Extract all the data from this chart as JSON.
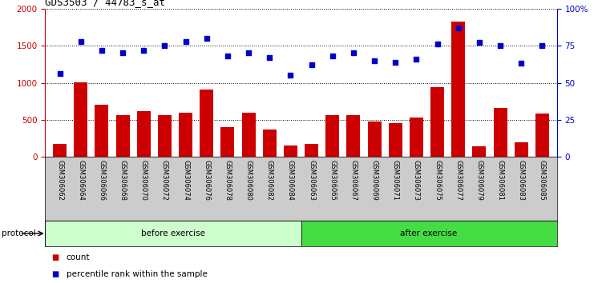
{
  "title": "GDS3503 / 44783_s_at",
  "categories": [
    "GSM306062",
    "GSM306064",
    "GSM306066",
    "GSM306068",
    "GSM306070",
    "GSM306072",
    "GSM306074",
    "GSM306076",
    "GSM306078",
    "GSM306080",
    "GSM306082",
    "GSM306084",
    "GSM306063",
    "GSM306065",
    "GSM306067",
    "GSM306069",
    "GSM306071",
    "GSM306073",
    "GSM306075",
    "GSM306077",
    "GSM306079",
    "GSM306081",
    "GSM306083",
    "GSM306085"
  ],
  "counts": [
    175,
    1010,
    700,
    565,
    620,
    560,
    600,
    910,
    400,
    600,
    370,
    155,
    175,
    570,
    565,
    480,
    455,
    530,
    940,
    1820,
    145,
    660,
    195,
    590
  ],
  "percentiles_pct": [
    56,
    78,
    72,
    70,
    72,
    75,
    78,
    80,
    68,
    70,
    67,
    55,
    62,
    68,
    70,
    65,
    64,
    66,
    76,
    87,
    77,
    75,
    63,
    75
  ],
  "bar_color": "#cc0000",
  "dot_color": "#0000cc",
  "before_count": 12,
  "after_count": 12,
  "before_label": "before exercise",
  "after_label": "after exercise",
  "protocol_label": "protocol",
  "legend_count": "count",
  "legend_percentile": "percentile rank within the sample",
  "ylim_left": [
    0,
    2000
  ],
  "ylim_right": [
    0,
    100
  ],
  "yticks_left": [
    0,
    500,
    1000,
    1500,
    2000
  ],
  "yticks_right": [
    0,
    25,
    50,
    75,
    100
  ],
  "ytick_right_labels": [
    "0",
    "25",
    "50",
    "75",
    "100%"
  ],
  "plot_bg_color": "#ffffff",
  "before_bg": "#ccffcc",
  "after_bg": "#44dd44",
  "xlabel_area_bg": "#cccccc"
}
